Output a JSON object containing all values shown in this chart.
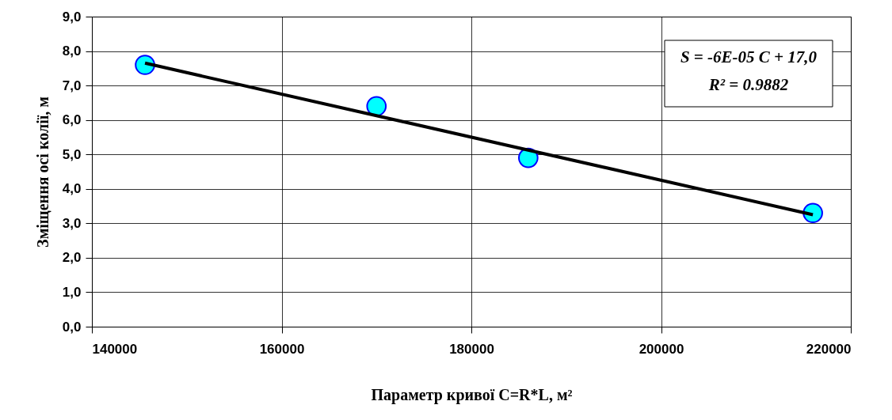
{
  "chart_data": {
    "type": "scatter",
    "xlabel": "Параметр кривої C=R*L, м²",
    "ylabel": "Зміщення осі колії, м",
    "x": [
      145600,
      170000,
      186000,
      216000
    ],
    "series": [
      {
        "color": "#00ffff",
        "values": [
          7.6,
          6.4,
          4.9,
          3.3
        ]
      },
      {
        "type": "line",
        "marker": "none",
        "color": "#000000",
        "x": [
          145600,
          216000
        ],
        "values": [
          7.65,
          3.25
        ]
      }
    ],
    "marker": "circle",
    "xlim": [
      140000,
      220000
    ],
    "xticks": [
      140000,
      160000,
      180000,
      200000,
      220000
    ],
    "ylim": [
      0,
      9
    ],
    "yticks": [
      {
        "value": 0,
        "label": "0,0"
      },
      {
        "value": 1,
        "label": "1,0"
      },
      {
        "value": 2,
        "label": "2,0"
      },
      {
        "value": 3,
        "label": "3,0"
      },
      {
        "value": 4,
        "label": "4,0"
      },
      {
        "value": 5,
        "label": "5,0"
      },
      {
        "value": 6,
        "label": "6,0"
      },
      {
        "value": 7,
        "label": "7,0"
      },
      {
        "value": 8,
        "label": "8,0"
      },
      {
        "value": 9,
        "label": "9,0"
      }
    ],
    "grid": true,
    "annotations": [
      "S = -6E-05 C + 17,0",
      "R² = 0.9882"
    ]
  }
}
